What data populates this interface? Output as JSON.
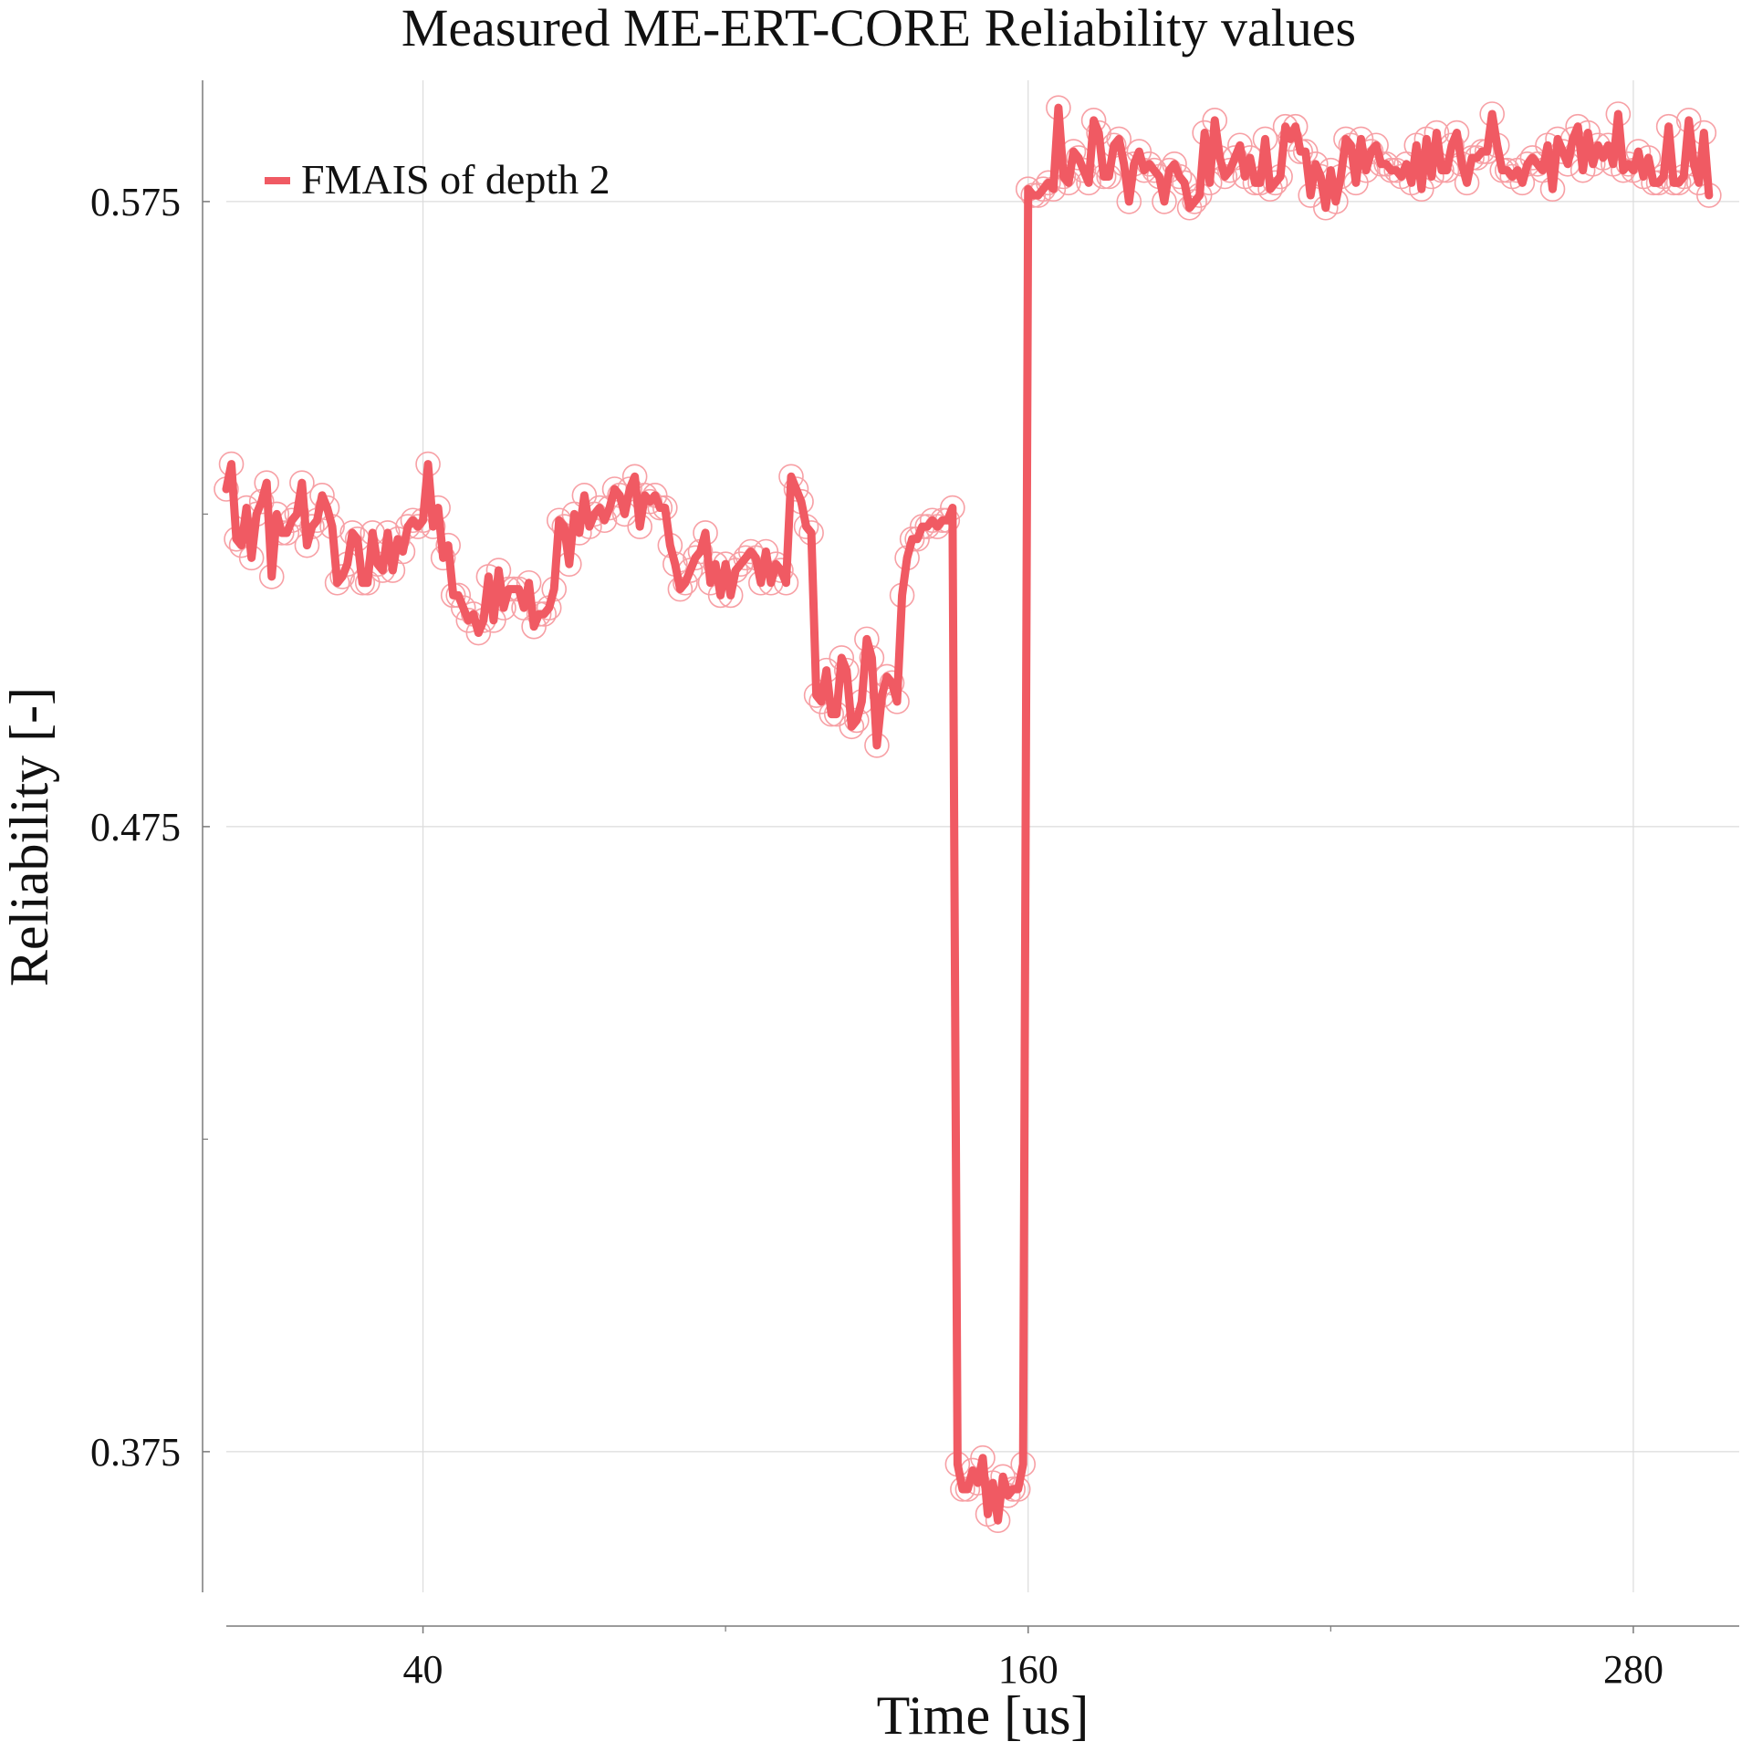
{
  "chart_data": {
    "type": "line",
    "title": "Measured ME-ERT-CORE Reliability values",
    "xlabel": "Time [us]",
    "ylabel": "Reliability [-]",
    "xlim": [
      1,
      301
    ],
    "ylim": [
      0.3525,
      0.5944
    ],
    "x_ticks": [
      40,
      160,
      280
    ],
    "x_tick_labels": [
      "40",
      "160",
      "280"
    ],
    "x_minor_ticks": [
      100,
      220
    ],
    "y_ticks": [
      0.375,
      0.475,
      0.575
    ],
    "y_tick_labels": [
      "0.375",
      "0.475",
      "0.575"
    ],
    "y_minor_ticks": [
      0.425,
      0.525
    ],
    "grid": true,
    "legend_position": "top-left",
    "colors": {
      "series": "#f05a63",
      "marker": "#f7a0a5",
      "axis": "#7a7a7a",
      "grid": "#dcdcdc"
    },
    "series": [
      {
        "name": "FMAIS of depth 2",
        "marker": "open-circle",
        "x_start": 1,
        "x_step": 1,
        "values": [
          0.529,
          0.533,
          0.521,
          0.52,
          0.526,
          0.518,
          0.525,
          0.527,
          0.53,
          0.515,
          0.525,
          0.522,
          0.522,
          0.524,
          0.525,
          0.53,
          0.52,
          0.523,
          0.524,
          0.528,
          0.526,
          0.523,
          0.514,
          0.515,
          0.517,
          0.522,
          0.521,
          0.514,
          0.514,
          0.522,
          0.517,
          0.516,
          0.522,
          0.516,
          0.521,
          0.519,
          0.523,
          0.524,
          0.523,
          0.524,
          0.533,
          0.523,
          0.526,
          0.518,
          0.52,
          0.512,
          0.512,
          0.51,
          0.508,
          0.509,
          0.506,
          0.508,
          0.515,
          0.508,
          0.516,
          0.51,
          0.513,
          0.513,
          0.513,
          0.51,
          0.514,
          0.507,
          0.509,
          0.509,
          0.51,
          0.513,
          0.524,
          0.523,
          0.517,
          0.525,
          0.522,
          0.528,
          0.523,
          0.525,
          0.526,
          0.524,
          0.526,
          0.529,
          0.528,
          0.525,
          0.529,
          0.531,
          0.523,
          0.528,
          0.527,
          0.528,
          0.526,
          0.526,
          0.52,
          0.517,
          0.513,
          0.514,
          0.516,
          0.518,
          0.519,
          0.522,
          0.514,
          0.517,
          0.512,
          0.517,
          0.512,
          0.516,
          0.517,
          0.518,
          0.519,
          0.518,
          0.514,
          0.519,
          0.514,
          0.517,
          0.516,
          0.514,
          0.531,
          0.529,
          0.527,
          0.523,
          0.522,
          0.496,
          0.495,
          0.5,
          0.493,
          0.493,
          0.502,
          0.5,
          0.491,
          0.492,
          0.495,
          0.505,
          0.502,
          0.488,
          0.496,
          0.499,
          0.498,
          0.495,
          0.512,
          0.518,
          0.521,
          0.521,
          0.523,
          0.523,
          0.524,
          0.523,
          0.524,
          0.524,
          0.526,
          0.373,
          0.369,
          0.369,
          0.372,
          0.37,
          0.374,
          0.365,
          0.37,
          0.364,
          0.371,
          0.368,
          0.369,
          0.369,
          0.373,
          0.577,
          0.576,
          0.576,
          0.577,
          0.578,
          0.577,
          0.59,
          0.579,
          0.578,
          0.583,
          0.582,
          0.58,
          0.578,
          0.588,
          0.586,
          0.579,
          0.579,
          0.584,
          0.585,
          0.581,
          0.575,
          0.581,
          0.583,
          0.58,
          0.581,
          0.58,
          0.579,
          0.575,
          0.58,
          0.581,
          0.579,
          0.578,
          0.574,
          0.575,
          0.576,
          0.586,
          0.578,
          0.588,
          0.582,
          0.579,
          0.58,
          0.582,
          0.584,
          0.579,
          0.582,
          0.578,
          0.578,
          0.585,
          0.577,
          0.578,
          0.579,
          0.587,
          0.585,
          0.587,
          0.583,
          0.583,
          0.576,
          0.581,
          0.579,
          0.574,
          0.58,
          0.575,
          0.579,
          0.585,
          0.584,
          0.578,
          0.585,
          0.58,
          0.583,
          0.584,
          0.581,
          0.581,
          0.58,
          0.58,
          0.579,
          0.581,
          0.578,
          0.584,
          0.577,
          0.585,
          0.579,
          0.586,
          0.58,
          0.58,
          0.584,
          0.586,
          0.581,
          0.578,
          0.582,
          0.582,
          0.583,
          0.583,
          0.589,
          0.584,
          0.58,
          0.58,
          0.579,
          0.58,
          0.578,
          0.581,
          0.582,
          0.581,
          0.58,
          0.584,
          0.577,
          0.585,
          0.583,
          0.581,
          0.585,
          0.587,
          0.58,
          0.586,
          0.581,
          0.584,
          0.582,
          0.584,
          0.581,
          0.589,
          0.58,
          0.581,
          0.58,
          0.583,
          0.579,
          0.582,
          0.578,
          0.578,
          0.579,
          0.587,
          0.578,
          0.578,
          0.579,
          0.588,
          0.581,
          0.578,
          0.586,
          0.576
        ]
      }
    ]
  }
}
